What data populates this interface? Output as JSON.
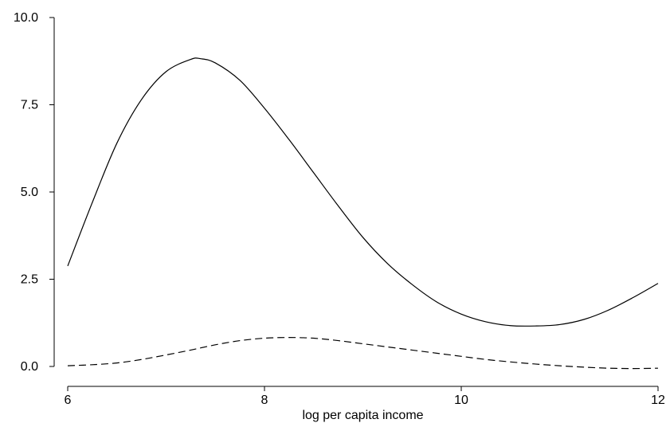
{
  "chart_data": {
    "type": "line",
    "title": "",
    "xlabel": "log per capita income",
    "ylabel": "",
    "xlim": [
      6,
      12
    ],
    "ylim": [
      0,
      10
    ],
    "x_ticks": [
      6,
      8,
      10,
      12
    ],
    "x_tick_labels": [
      "6",
      "8",
      "10",
      "12"
    ],
    "y_ticks": [
      0,
      2.5,
      5,
      7.5,
      10
    ],
    "y_tick_labels": [
      "0.0",
      "2.5",
      "5.0",
      "7.5",
      "10.0"
    ],
    "grid": false,
    "legend": "none",
    "series": [
      {
        "style": "solid",
        "color": "#000000",
        "x": [
          6.0,
          6.25,
          6.5,
          6.75,
          7.0,
          7.25,
          7.35,
          7.5,
          7.75,
          8.0,
          8.25,
          8.5,
          8.75,
          9.0,
          9.25,
          9.5,
          9.75,
          10.0,
          10.25,
          10.5,
          10.75,
          11.0,
          11.25,
          11.5,
          11.75,
          12.0
        ],
        "y": [
          2.88,
          4.7,
          6.4,
          7.65,
          8.45,
          8.8,
          8.82,
          8.7,
          8.2,
          7.4,
          6.5,
          5.55,
          4.6,
          3.7,
          2.95,
          2.35,
          1.85,
          1.5,
          1.28,
          1.17,
          1.16,
          1.2,
          1.35,
          1.62,
          1.98,
          2.38
        ]
      },
      {
        "style": "dashed",
        "color": "#000000",
        "x": [
          6.0,
          6.25,
          6.5,
          6.75,
          7.0,
          7.25,
          7.5,
          7.75,
          8.0,
          8.25,
          8.5,
          8.75,
          9.0,
          9.25,
          9.5,
          9.75,
          10.0,
          10.25,
          10.5,
          10.75,
          11.0,
          11.25,
          11.5,
          11.75,
          12.0
        ],
        "y": [
          0.02,
          0.05,
          0.1,
          0.2,
          0.33,
          0.47,
          0.62,
          0.74,
          0.81,
          0.83,
          0.81,
          0.74,
          0.65,
          0.56,
          0.47,
          0.38,
          0.29,
          0.2,
          0.13,
          0.07,
          0.02,
          -0.02,
          -0.05,
          -0.06,
          -0.05
        ]
      }
    ]
  }
}
